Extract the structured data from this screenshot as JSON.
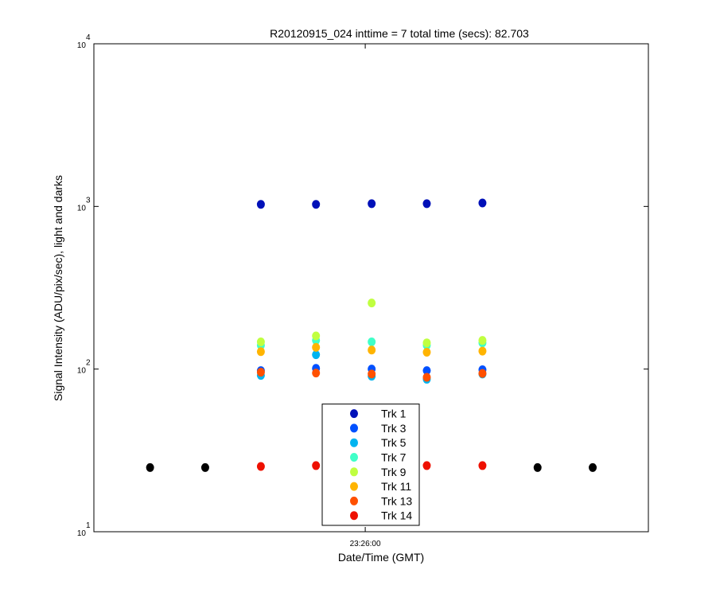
{
  "chart_data": {
    "type": "scatter",
    "title": "R20120915_024 inttime = 7 total time (secs): 82.703",
    "x_label": "Date/Time (GMT)",
    "y_label": "Signal Intensity (ADU/pix/sec), light and darks",
    "y_log": true,
    "xlim": [
      84309.3,
      84412.9
    ],
    "xticks": [
      {
        "value": 84360,
        "label": "23:26:00"
      }
    ],
    "ylim": [
      10,
      10000
    ],
    "yticks": [
      {
        "value": 10,
        "label": "10",
        "exponent": "1"
      },
      {
        "value": 100,
        "label": "10",
        "exponent": "2"
      },
      {
        "value": 1000,
        "label": "10",
        "exponent": "3"
      },
      {
        "value": 10000,
        "label": "10",
        "exponent": "4"
      }
    ],
    "x": [
      84319.8,
      84330.1,
      84340.5,
      84350.8,
      84361.2,
      84371.5,
      84381.9,
      84392.2,
      84402.5
    ],
    "legend": "bottom-center",
    "series": [
      {
        "color": "#000000",
        "values": [
          24.8,
          24.8,
          null,
          null,
          null,
          null,
          null,
          24.8,
          24.8
        ]
      },
      {
        "name": "Trk 1",
        "color": "#0010b8",
        "values": [
          null,
          null,
          1030,
          1030,
          1040,
          1040,
          1050,
          null,
          null
        ]
      },
      {
        "name": "Trk 3",
        "color": "#0050ff",
        "values": [
          null,
          null,
          97.8,
          101,
          100,
          97.8,
          99,
          null,
          null
        ]
      },
      {
        "name": "Trk 5",
        "color": "#00b4f0",
        "values": [
          null,
          null,
          91.4,
          122.5,
          90.4,
          86.6,
          93.2,
          null,
          null
        ]
      },
      {
        "name": "Trk 7",
        "color": "#40ffc8",
        "values": [
          null,
          null,
          140,
          150,
          147,
          140,
          145,
          null,
          null
        ]
      },
      {
        "name": "Trk 9",
        "color": "#c0ff40",
        "values": [
          null,
          null,
          147,
          160,
          255,
          145,
          150,
          null,
          null
        ]
      },
      {
        "name": "Trk 11",
        "color": "#ffb400",
        "values": [
          null,
          null,
          128,
          136,
          131,
          127,
          129,
          null,
          null
        ]
      },
      {
        "name": "Trk 13",
        "color": "#ff5000",
        "values": [
          null,
          null,
          95.6,
          94.6,
          93.2,
          89,
          94,
          null,
          null
        ]
      },
      {
        "name": "Trk 14",
        "color": "#ee1000",
        "values": [
          null,
          null,
          25.2,
          25.5,
          25.5,
          25.5,
          25.5,
          null,
          null
        ]
      }
    ]
  }
}
